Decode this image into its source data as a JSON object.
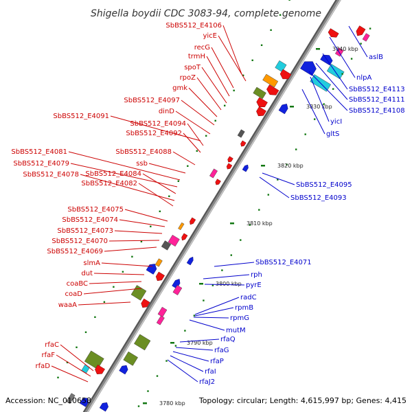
{
  "title": "Shigella boydii CDC 3083-94, complete genome",
  "footer": {
    "accession": "Accession: NC_010658",
    "summary": "Topology: circular; Length: 4,615,997 bp; Genes: 4,415"
  },
  "scale_labels": [
    "3840 kbp",
    "3830 kbp",
    "3820 kbp",
    "3810 kbp",
    "3800 kbp",
    "3790 kbp",
    "3780 kbp"
  ],
  "left_genes": [
    "SbBS512_E4106",
    "yicE",
    "recG",
    "trmH",
    "spoT",
    "rpoZ",
    "gmk",
    "SbBS512_E4097",
    "dinD",
    "SbBS512_E4091",
    "SbBS512_E4094",
    "SbBS512_E4092",
    "SbBS512_E4088",
    "ssb",
    "SbBS512_E4081",
    "SbBS512_E4079",
    "SbBS512_E4084",
    "SbBS512_E4078",
    "SbBS512_E4082",
    "SbBS512_E4075",
    "SbBS512_E4074",
    "SbBS512_E4073",
    "SbBS512_E4070",
    "SbBS512_E4069",
    "slmA",
    "dut",
    "coaBC",
    "coaD",
    "waaA",
    "rfaC",
    "rfaF",
    "rfaD"
  ],
  "right_genes": [
    "aslB",
    "nlpA",
    "SbBS512_E4113",
    "SbBS512_E4111",
    "SbBS512_E4108",
    "yicI",
    "gltS",
    "SbBS512_E4095",
    "SbBS512_E4093",
    "SbBS512_E4071",
    "rph",
    "pyrE",
    "radC",
    "rpmB",
    "rpmG",
    "mutM",
    "rfaQ",
    "rfaG",
    "rfaP",
    "rfaI",
    "rfaJ2"
  ],
  "colors": {
    "forward_label": "#cc0000",
    "reverse_label": "#0000cc",
    "backbone": "#888888",
    "forward_feature": "#ee1111",
    "reverse_feature": "#1122dd",
    "rna_feature": "#ff2299",
    "cyan_feature": "#22ccdd",
    "olive_feature": "#6b8e23",
    "orange_feature": "#ff9900",
    "tick": "#117711"
  }
}
